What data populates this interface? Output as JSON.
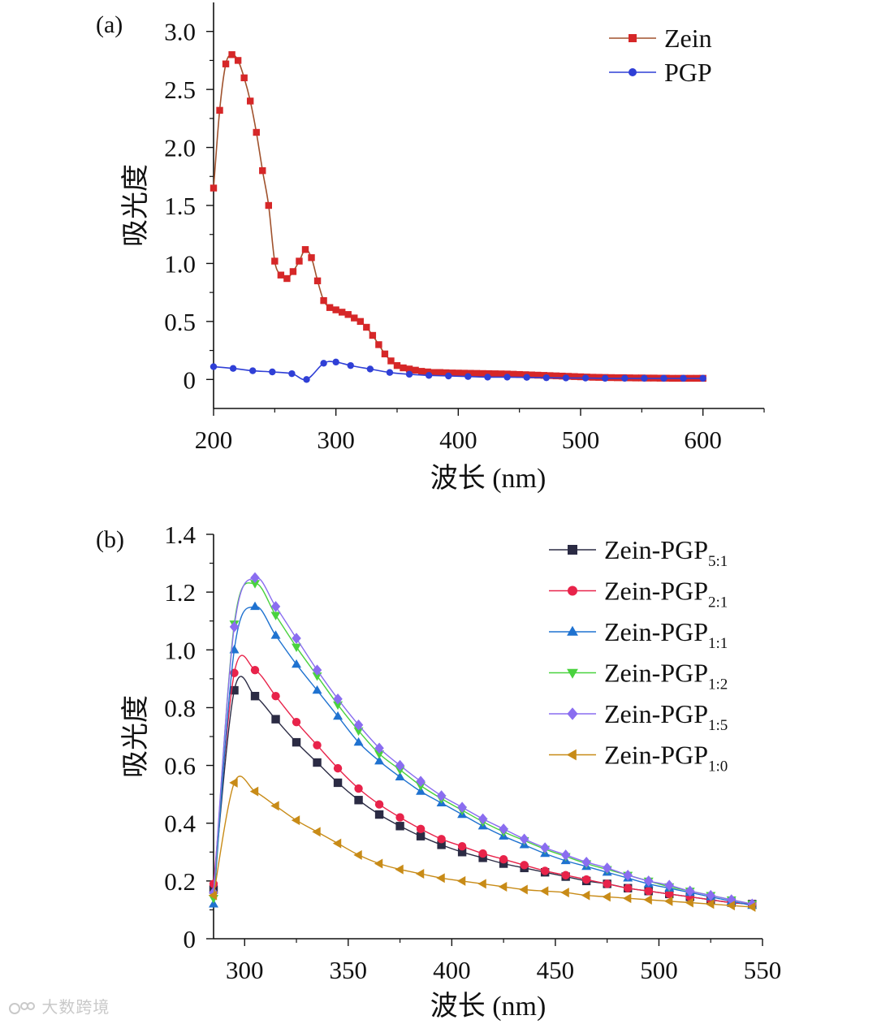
{
  "watermark": "大数跨境",
  "chart_data": [
    {
      "id": "a",
      "type": "line",
      "panel_label": "(a)",
      "xlabel": "波长 (nm)",
      "ylabel": "吸光度",
      "xlim": [
        200,
        650
      ],
      "ylim": [
        -0.25,
        3.25
      ],
      "xticks": [
        200,
        300,
        400,
        500,
        600
      ],
      "xtick_labels": [
        "200",
        "300",
        "400",
        "500",
        "600"
      ],
      "yticks": [
        0,
        0.5,
        1.0,
        1.5,
        2.0,
        2.5,
        3.0
      ],
      "ytick_labels": [
        "0",
        "0.5",
        "1.0",
        "1.5",
        "2.0",
        "2.5",
        "3.0"
      ],
      "legend_position": "top-right",
      "series": [
        {
          "name": "Zein",
          "color": "#d62728",
          "line_color": "#a0522d",
          "marker": "square",
          "x": [
            200,
            205,
            210,
            215,
            220,
            225,
            230,
            235,
            240,
            245,
            250,
            255,
            260,
            265,
            270,
            275,
            280,
            285,
            290,
            295,
            300,
            305,
            310,
            315,
            320,
            325,
            330,
            335,
            340,
            345,
            350,
            355,
            360,
            365,
            370,
            375,
            380,
            385,
            390,
            395,
            400,
            405,
            410,
            415,
            420,
            425,
            430,
            435,
            440,
            445,
            450,
            455,
            460,
            465,
            470,
            475,
            480,
            485,
            490,
            495,
            500,
            505,
            510,
            515,
            520,
            525,
            530,
            535,
            540,
            545,
            550,
            555,
            560,
            565,
            570,
            575,
            580,
            585,
            590,
            595,
            600
          ],
          "y": [
            1.65,
            2.32,
            2.72,
            2.8,
            2.75,
            2.6,
            2.4,
            2.13,
            1.8,
            1.5,
            1.02,
            0.9,
            0.87,
            0.93,
            1.02,
            1.12,
            1.05,
            0.85,
            0.68,
            0.62,
            0.6,
            0.58,
            0.56,
            0.53,
            0.5,
            0.45,
            0.38,
            0.3,
            0.22,
            0.16,
            0.12,
            0.1,
            0.09,
            0.08,
            0.07,
            0.065,
            0.06,
            0.06,
            0.058,
            0.056,
            0.055,
            0.054,
            0.053,
            0.052,
            0.051,
            0.05,
            0.049,
            0.048,
            0.047,
            0.045,
            0.043,
            0.041,
            0.039,
            0.037,
            0.035,
            0.033,
            0.031,
            0.029,
            0.027,
            0.025,
            0.023,
            0.021,
            0.019,
            0.018,
            0.017,
            0.016,
            0.015,
            0.015,
            0.014,
            0.013,
            0.013,
            0.012,
            0.012,
            0.011,
            0.011,
            0.01,
            0.01,
            0.01,
            0.01,
            0.01,
            0.01
          ]
        },
        {
          "name": "PGP",
          "color": "#2f3fd6",
          "line_color": "#2f3fd6",
          "marker": "circle",
          "x": [
            200,
            216,
            232,
            248,
            264,
            276,
            290,
            300,
            312,
            328,
            344,
            360,
            376,
            392,
            408,
            424,
            440,
            456,
            472,
            488,
            504,
            520,
            536,
            552,
            568,
            584,
            600
          ],
          "y": [
            0.11,
            0.095,
            0.075,
            0.065,
            0.05,
            0.0,
            0.14,
            0.15,
            0.12,
            0.09,
            0.06,
            0.045,
            0.035,
            0.03,
            0.025,
            0.02,
            0.02,
            0.018,
            0.015,
            0.013,
            0.012,
            0.01,
            0.01,
            0.01,
            0.01,
            0.01,
            0.01
          ]
        }
      ]
    },
    {
      "id": "b",
      "type": "line",
      "panel_label": "(b)",
      "xlabel": "波长 (nm)",
      "ylabel": "吸光度",
      "xlim": [
        285,
        550
      ],
      "ylim": [
        0,
        1.4
      ],
      "xticks": [
        300,
        350,
        400,
        450,
        500,
        550
      ],
      "xtick_labels": [
        "300",
        "350",
        "400",
        "450",
        "500",
        "550"
      ],
      "yticks": [
        0,
        0.2,
        0.4,
        0.6,
        0.8,
        1.0,
        1.2,
        1.4
      ],
      "ytick_labels": [
        "0",
        "0.2",
        "0.4",
        "0.6",
        "0.8",
        "1.0",
        "1.2",
        "1.4"
      ],
      "legend_position": "top-right",
      "x": [
        285,
        295,
        305,
        315,
        325,
        335,
        345,
        355,
        365,
        375,
        385,
        395,
        405,
        415,
        425,
        435,
        445,
        455,
        465,
        475,
        485,
        495,
        505,
        515,
        525,
        535,
        545
      ],
      "series": [
        {
          "name": "Zein-PGP",
          "subscript": "5:1",
          "color": "#2b2b44",
          "marker": "square",
          "y": [
            0.17,
            0.86,
            0.84,
            0.76,
            0.68,
            0.61,
            0.54,
            0.48,
            0.43,
            0.39,
            0.355,
            0.325,
            0.3,
            0.28,
            0.26,
            0.245,
            0.23,
            0.215,
            0.2,
            0.19,
            0.175,
            0.165,
            0.155,
            0.145,
            0.135,
            0.125,
            0.12
          ]
        },
        {
          "name": "Zein-PGP",
          "subscript": "2:1",
          "color": "#e8234a",
          "marker": "circle",
          "y": [
            0.19,
            0.92,
            0.93,
            0.84,
            0.75,
            0.67,
            0.59,
            0.52,
            0.465,
            0.42,
            0.38,
            0.345,
            0.32,
            0.295,
            0.275,
            0.255,
            0.235,
            0.22,
            0.205,
            0.19,
            0.175,
            0.165,
            0.155,
            0.145,
            0.135,
            0.125,
            0.12
          ]
        },
        {
          "name": "Zein-PGP",
          "subscript": "1:1",
          "color": "#1f72d0",
          "marker": "triangle-up",
          "y": [
            0.12,
            1.0,
            1.15,
            1.05,
            0.95,
            0.86,
            0.77,
            0.68,
            0.615,
            0.56,
            0.51,
            0.47,
            0.43,
            0.39,
            0.355,
            0.325,
            0.295,
            0.27,
            0.25,
            0.23,
            0.21,
            0.19,
            0.175,
            0.16,
            0.145,
            0.13,
            0.115
          ]
        },
        {
          "name": "Zein-PGP",
          "subscript": "1:2",
          "color": "#49d23e",
          "marker": "triangle-down",
          "y": [
            0.14,
            1.09,
            1.23,
            1.12,
            1.01,
            0.91,
            0.81,
            0.72,
            0.64,
            0.585,
            0.53,
            0.485,
            0.445,
            0.405,
            0.37,
            0.34,
            0.31,
            0.285,
            0.26,
            0.24,
            0.22,
            0.2,
            0.18,
            0.165,
            0.15,
            0.135,
            0.12
          ]
        },
        {
          "name": "Zein-PGP",
          "subscript": "1:5",
          "color": "#8a6df0",
          "marker": "diamond",
          "y": [
            0.16,
            1.08,
            1.25,
            1.15,
            1.04,
            0.93,
            0.83,
            0.74,
            0.66,
            0.6,
            0.545,
            0.495,
            0.455,
            0.415,
            0.38,
            0.345,
            0.315,
            0.29,
            0.265,
            0.245,
            0.22,
            0.2,
            0.185,
            0.165,
            0.15,
            0.135,
            0.12
          ]
        },
        {
          "name": "Zein-PGP",
          "subscript": "1:0",
          "color": "#c88b17",
          "marker": "triangle-left",
          "y": [
            0.15,
            0.54,
            0.51,
            0.46,
            0.41,
            0.37,
            0.33,
            0.29,
            0.26,
            0.24,
            0.225,
            0.21,
            0.2,
            0.19,
            0.18,
            0.17,
            0.165,
            0.16,
            0.15,
            0.145,
            0.14,
            0.135,
            0.13,
            0.125,
            0.12,
            0.115,
            0.11
          ]
        }
      ]
    }
  ]
}
